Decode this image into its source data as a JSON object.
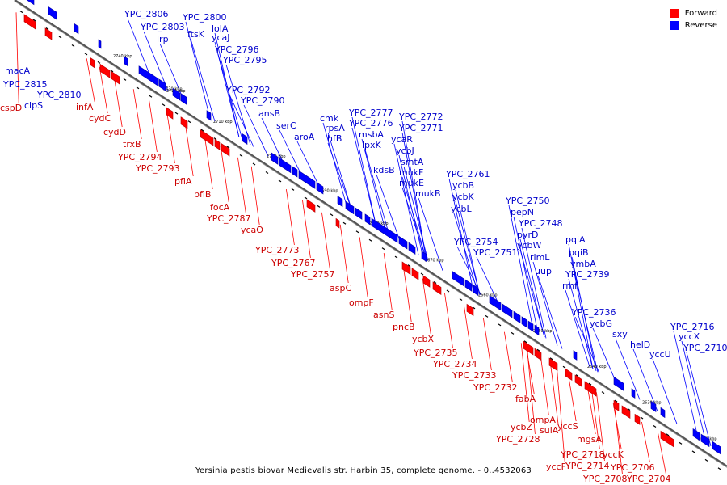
{
  "legend": {
    "forward_label": "Forward",
    "reverse_label": "Reverse",
    "forward_color": "#ff0000",
    "reverse_color": "#0000ff"
  },
  "caption": "Yersinia pestis biovar Medievalis str. Harbin 35, complete genome. - 0..4532063",
  "ticks": [
    "2740 kbp",
    "2730 kbp",
    "2720 kbp",
    "2710 kbp",
    "2700 kbp",
    "2690 kbp",
    "2680 kbp",
    "2670 kbp",
    "2660 kbp",
    "2650 kbp",
    "2640 kbp",
    "2630 kbp",
    "2620 kbp"
  ],
  "reverse_labels": [
    "YPC_2806",
    "YPC_2803",
    "lrp",
    "YPC_2800",
    "ftsK",
    "lolA",
    "ycaJ",
    "YPC_2796",
    "YPC_2795",
    "macA",
    "YPC_2815",
    "YPC_2810",
    "clpS",
    "YPC_2792",
    "YPC_2790",
    "ansB",
    "serC",
    "cmk",
    "rpsA",
    "ihfB",
    "aroA",
    "YPC_2777",
    "YPC_2776",
    "msbA",
    "lpxK",
    "ycaR",
    "YPC_2772",
    "YPC_2771",
    "ycbJ",
    "smtA",
    "kdsB",
    "mukF",
    "mukE",
    "mukB",
    "YPC_2761",
    "ycbB",
    "ycbK",
    "ycbL",
    "YPC_2750",
    "pepN",
    "YPC_2748",
    "pyrD",
    "YPC_2754",
    "ycbW",
    "YPC_2751",
    "rlmL",
    "uup",
    "pqiA",
    "pqiB",
    "ymbA",
    "YPC_2739",
    "rmf",
    "YPC_2736",
    "ycbG",
    "sxy",
    "helD",
    "yccU",
    "YPC_2716",
    "yccX",
    "YPC_2710"
  ],
  "forward_labels": [
    "cspD",
    "infA",
    "cydC",
    "cydD",
    "trxB",
    "YPC_2794",
    "YPC_2793",
    "pflA",
    "pflB",
    "focA",
    "YPC_2787",
    "ycaO",
    "YPC_2773",
    "YPC_2767",
    "YPC_2757",
    "aspC",
    "ompF",
    "asnS",
    "pncB",
    "ycbX",
    "YPC_2735",
    "YPC_2734",
    "YPC_2733",
    "YPC_2732",
    "fabA",
    "ompA",
    "ycbZ",
    "sulA",
    "yccS",
    "YPC_2728",
    "mgsA",
    "YPC_2718",
    "yccK",
    "yccF",
    "YPC_2714",
    "YPC_2706",
    "YPC_2708",
    "YPC_2704"
  ]
}
